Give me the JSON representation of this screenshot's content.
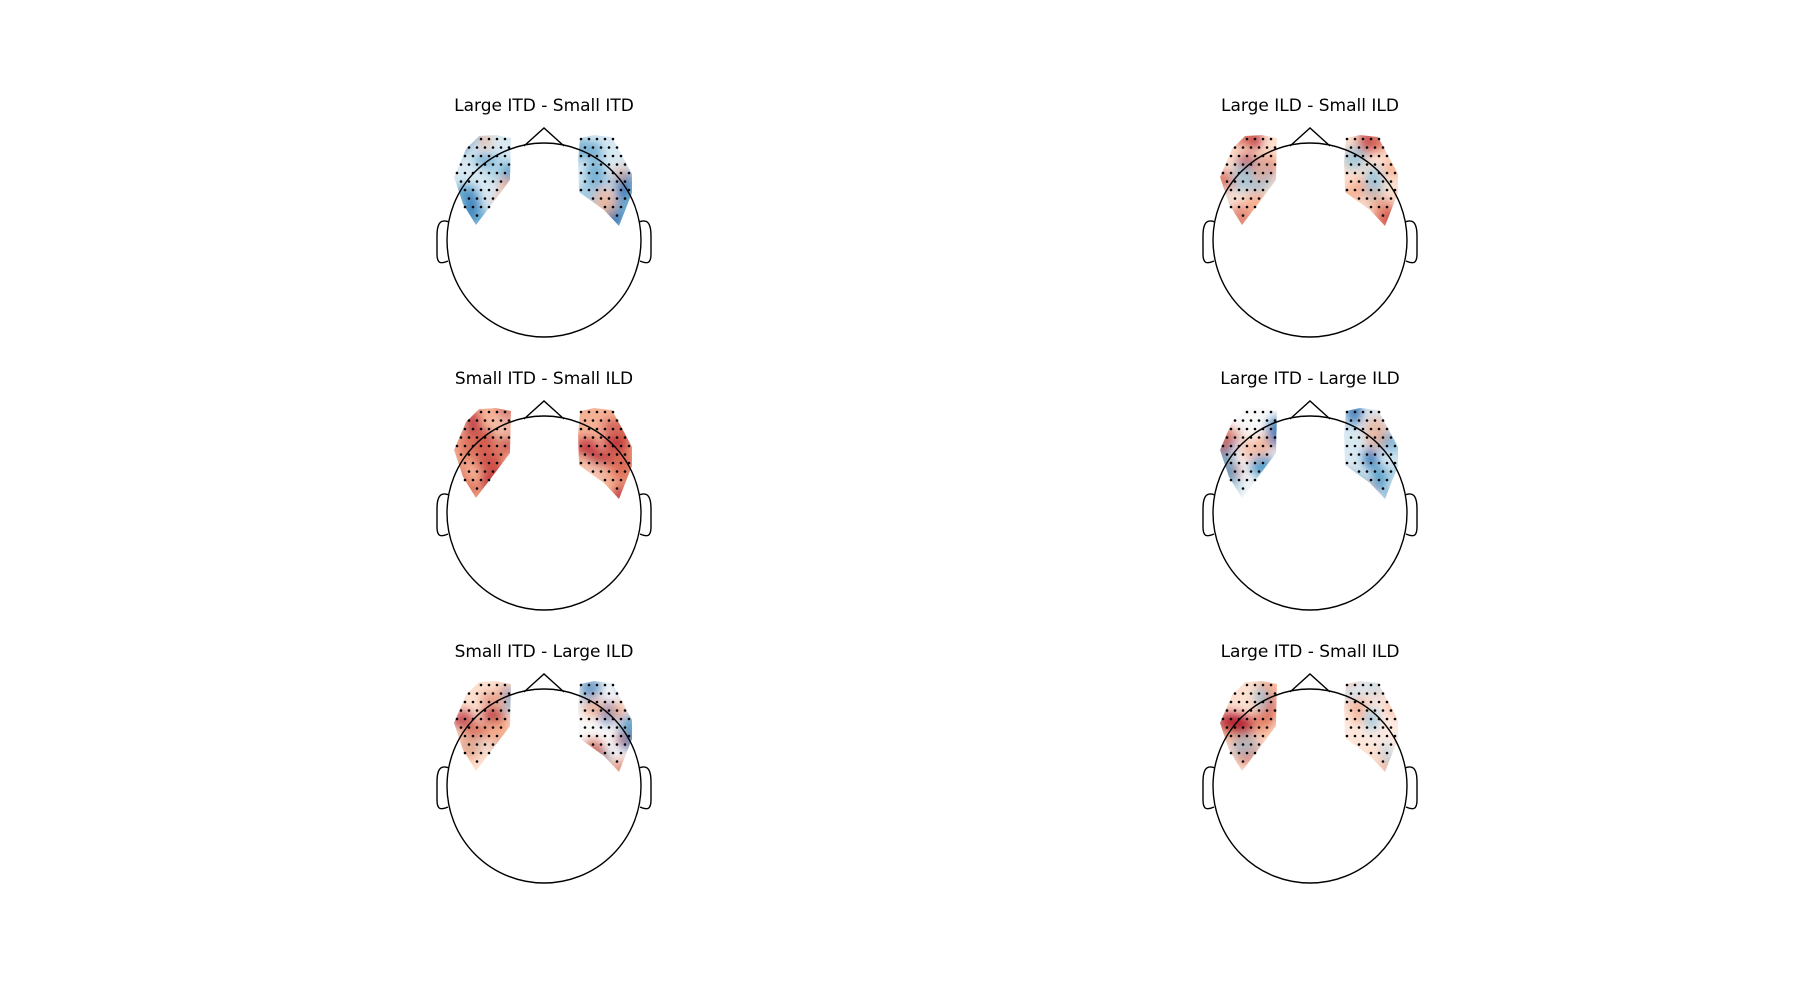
{
  "chart_data": [
    {
      "type": "heatmap",
      "title": "Large ITD - Small ITD",
      "pattern": {
        "left": "mostly-blue",
        "right": "mostly-blue"
      }
    },
    {
      "type": "heatmap",
      "title": "Large ILD - Small ILD",
      "pattern": {
        "left": "mostly-red",
        "right": "mostly-red"
      }
    },
    {
      "type": "heatmap",
      "title": "Small ITD - Small ILD",
      "pattern": {
        "left": "strong-red",
        "right": "strong-red"
      }
    },
    {
      "type": "heatmap",
      "title": "Large ITD - Large ILD",
      "pattern": {
        "left": "mixed-red-blue",
        "right": "mostly-blue"
      }
    },
    {
      "type": "heatmap",
      "title": "Small ITD - Large ILD",
      "pattern": {
        "left": "mostly-red",
        "right": "mixed-red-blue"
      }
    },
    {
      "type": "heatmap",
      "title": "Large ITD - Small ILD",
      "pattern": {
        "left": "mostly-red",
        "right": "light-red"
      }
    }
  ],
  "colors": {
    "positive": "#b2182b",
    "negative": "#2166ac",
    "neutral": "#f7f7f7",
    "outline": "#000000"
  }
}
